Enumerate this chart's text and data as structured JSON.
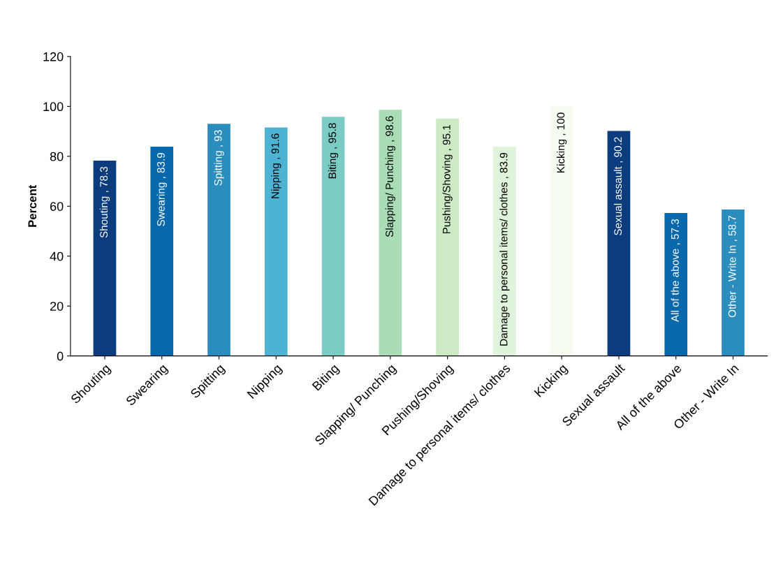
{
  "chart_data": {
    "type": "bar",
    "ylabel": "Percent",
    "categories": [
      "Shouting",
      "Swearing",
      "Spitting",
      "Nipping",
      "Biting",
      "Slapping/ Punching",
      "Pushing/Shoving",
      "Damage to personal items/ clothes",
      "Kicking",
      "Sexual assault",
      "All of the above",
      "Other - Write In"
    ],
    "values": [
      78.3,
      83.9,
      93,
      91.6,
      95.8,
      98.6,
      95.1,
      83.9,
      100,
      90.2,
      57.3,
      58.7
    ],
    "colors": [
      "#0b3c7d",
      "#0868ac",
      "#2b8cbe",
      "#4eb3d3",
      "#7bccc4",
      "#a8ddb5",
      "#ccebc5",
      "#e0f3db",
      "#f7fcf0",
      "#0b3c7d",
      "#0868ac",
      "#2b8cbe"
    ],
    "value_labels": [
      "Shouting , 78.3",
      "Swearing , 83.9",
      "Spitting , 93",
      "Nipping , 91.6",
      "Biting , 95.8",
      "Slapping/ Punching , 98.6",
      "Pushing/Shoving , 95.1",
      "Damage to personal items/ clothes , 83.9",
      "Kicking , 100",
      "Sexual assault , 90.2",
      "All of the above , 57.3",
      "Other - Write In , 58.7"
    ],
    "ylim": [
      0,
      120
    ],
    "yticks": [
      0,
      20,
      40,
      60,
      80,
      100,
      120
    ],
    "grid": false,
    "legend": false
  }
}
